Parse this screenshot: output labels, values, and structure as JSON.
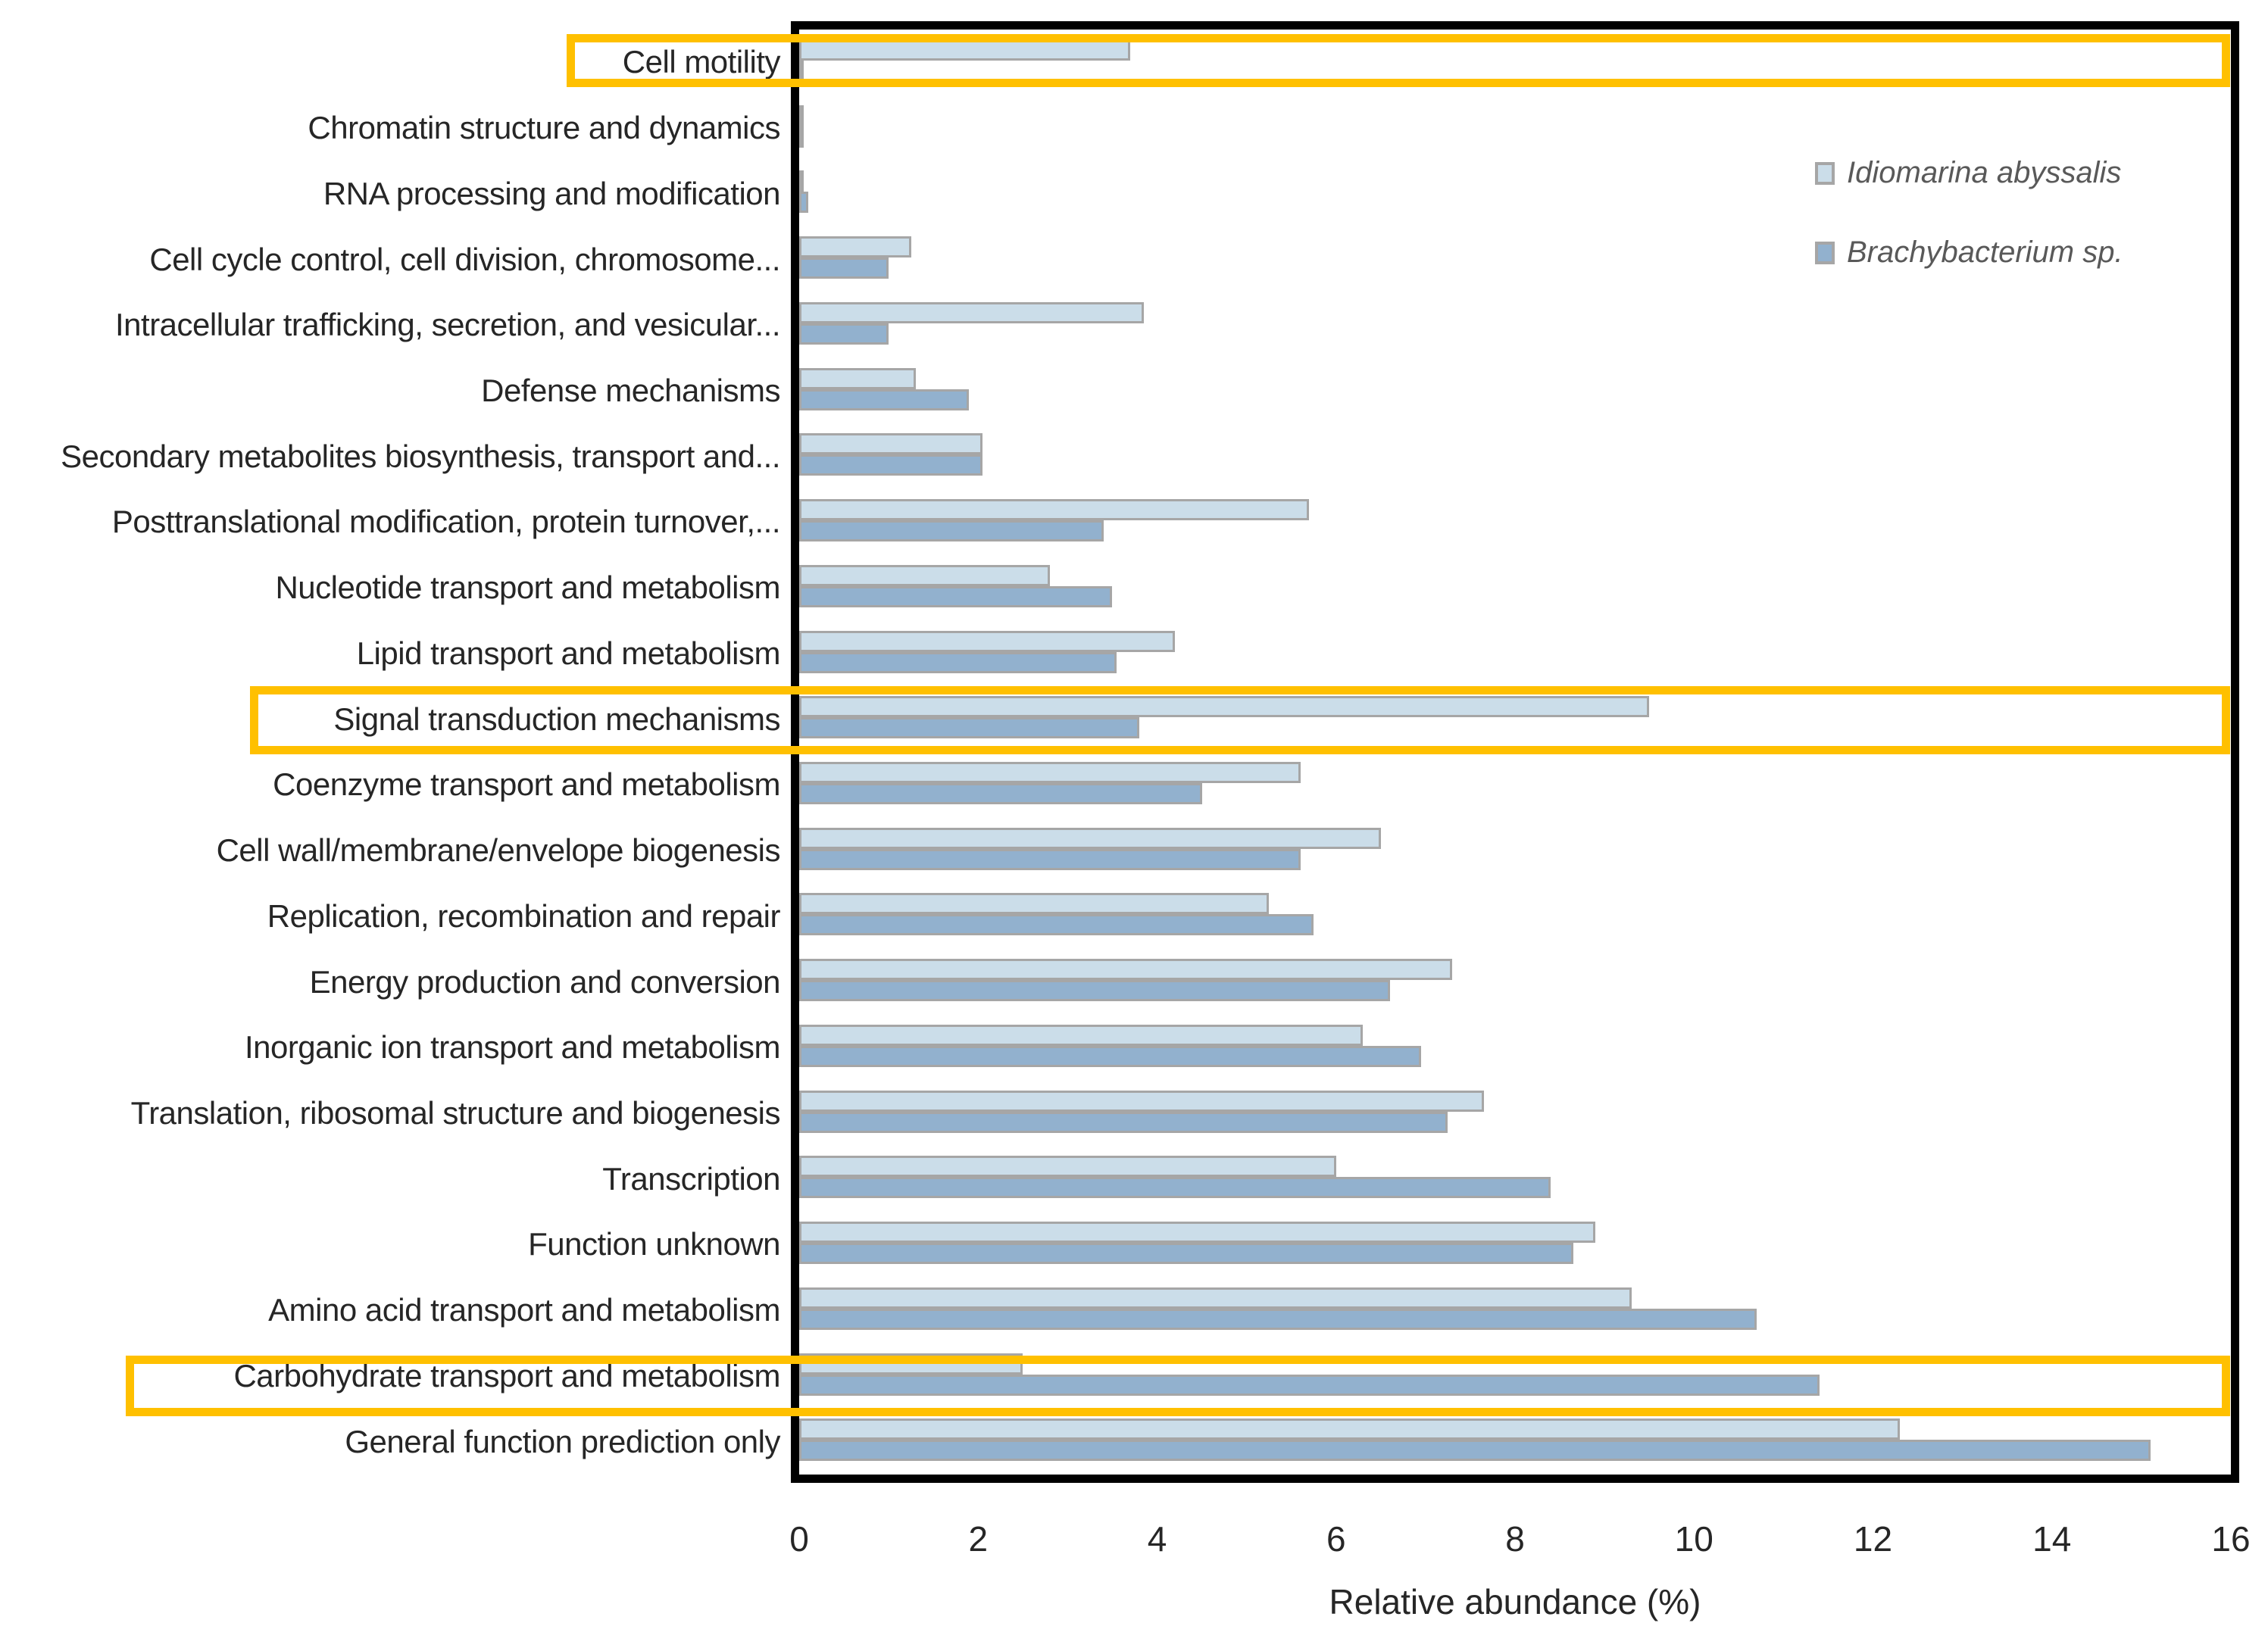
{
  "chart_data": {
    "type": "bar",
    "orientation": "horizontal",
    "title": "",
    "xlabel": "Relative abundance (%)",
    "x_axis": {
      "min": 0,
      "max": 16,
      "tick_step": 2,
      "ticks": [
        0,
        2,
        4,
        6,
        8,
        10,
        12,
        14,
        16
      ]
    },
    "grid": false,
    "legend_position": "inside-upper-right",
    "categories": [
      "Cell motility",
      "Chromatin structure and dynamics",
      "RNA processing and modification",
      "Cell cycle control, cell division, chromosome...",
      "Intracellular trafficking, secretion, and vesicular...",
      "Defense mechanisms",
      "Secondary metabolites biosynthesis, transport and...",
      "Posttranslational modification, protein turnover,...",
      "Nucleotide transport and metabolism",
      "Lipid transport and metabolism",
      "Signal transduction mechanisms",
      "Coenzyme transport and metabolism",
      "Cell wall/membrane/envelope biogenesis",
      "Replication, recombination and repair",
      "Energy production and conversion",
      "Inorganic ion transport and metabolism",
      "Translation, ribosomal structure and biogenesis",
      "Transcription",
      "Function unknown",
      "Amino acid transport and metabolism",
      "Carbohydrate transport and metabolism",
      "General function prediction only"
    ],
    "series": [
      {
        "name": "Idiomarina abyssalis",
        "color": "#CBDDE9",
        "values": [
          3.7,
          0.05,
          0.05,
          1.25,
          3.85,
          1.3,
          2.05,
          5.7,
          2.8,
          4.2,
          9.5,
          5.6,
          6.5,
          5.25,
          7.3,
          6.3,
          7.65,
          6.0,
          8.9,
          9.3,
          2.5,
          12.3
        ]
      },
      {
        "name": "Brachybacterium sp.",
        "color": "#92B1CE",
        "values": [
          0.05,
          0.05,
          0.1,
          1.0,
          1.0,
          1.9,
          2.05,
          3.4,
          3.5,
          3.55,
          3.8,
          4.5,
          5.6,
          5.75,
          6.6,
          6.95,
          7.25,
          8.4,
          8.65,
          10.7,
          11.4,
          15.1
        ]
      }
    ],
    "highlight_indices": [
      0,
      10,
      20
    ],
    "highlighted_categories": [
      "Cell motility",
      "Signal transduction mechanisms",
      "Carbohydrate transport and metabolism"
    ]
  },
  "legend": {
    "items": [
      {
        "label": "Idiomarina abyssalis",
        "swatch_color": "#CBDDE9"
      },
      {
        "label": "Brachybacterium sp.",
        "swatch_color": "#92B1CE"
      }
    ]
  },
  "colors": {
    "highlight_box": "#FFC000",
    "bar_border": "#A6A6A6",
    "plot_border": "#000000",
    "legend_text": "#595959",
    "label_text": "#262626"
  }
}
